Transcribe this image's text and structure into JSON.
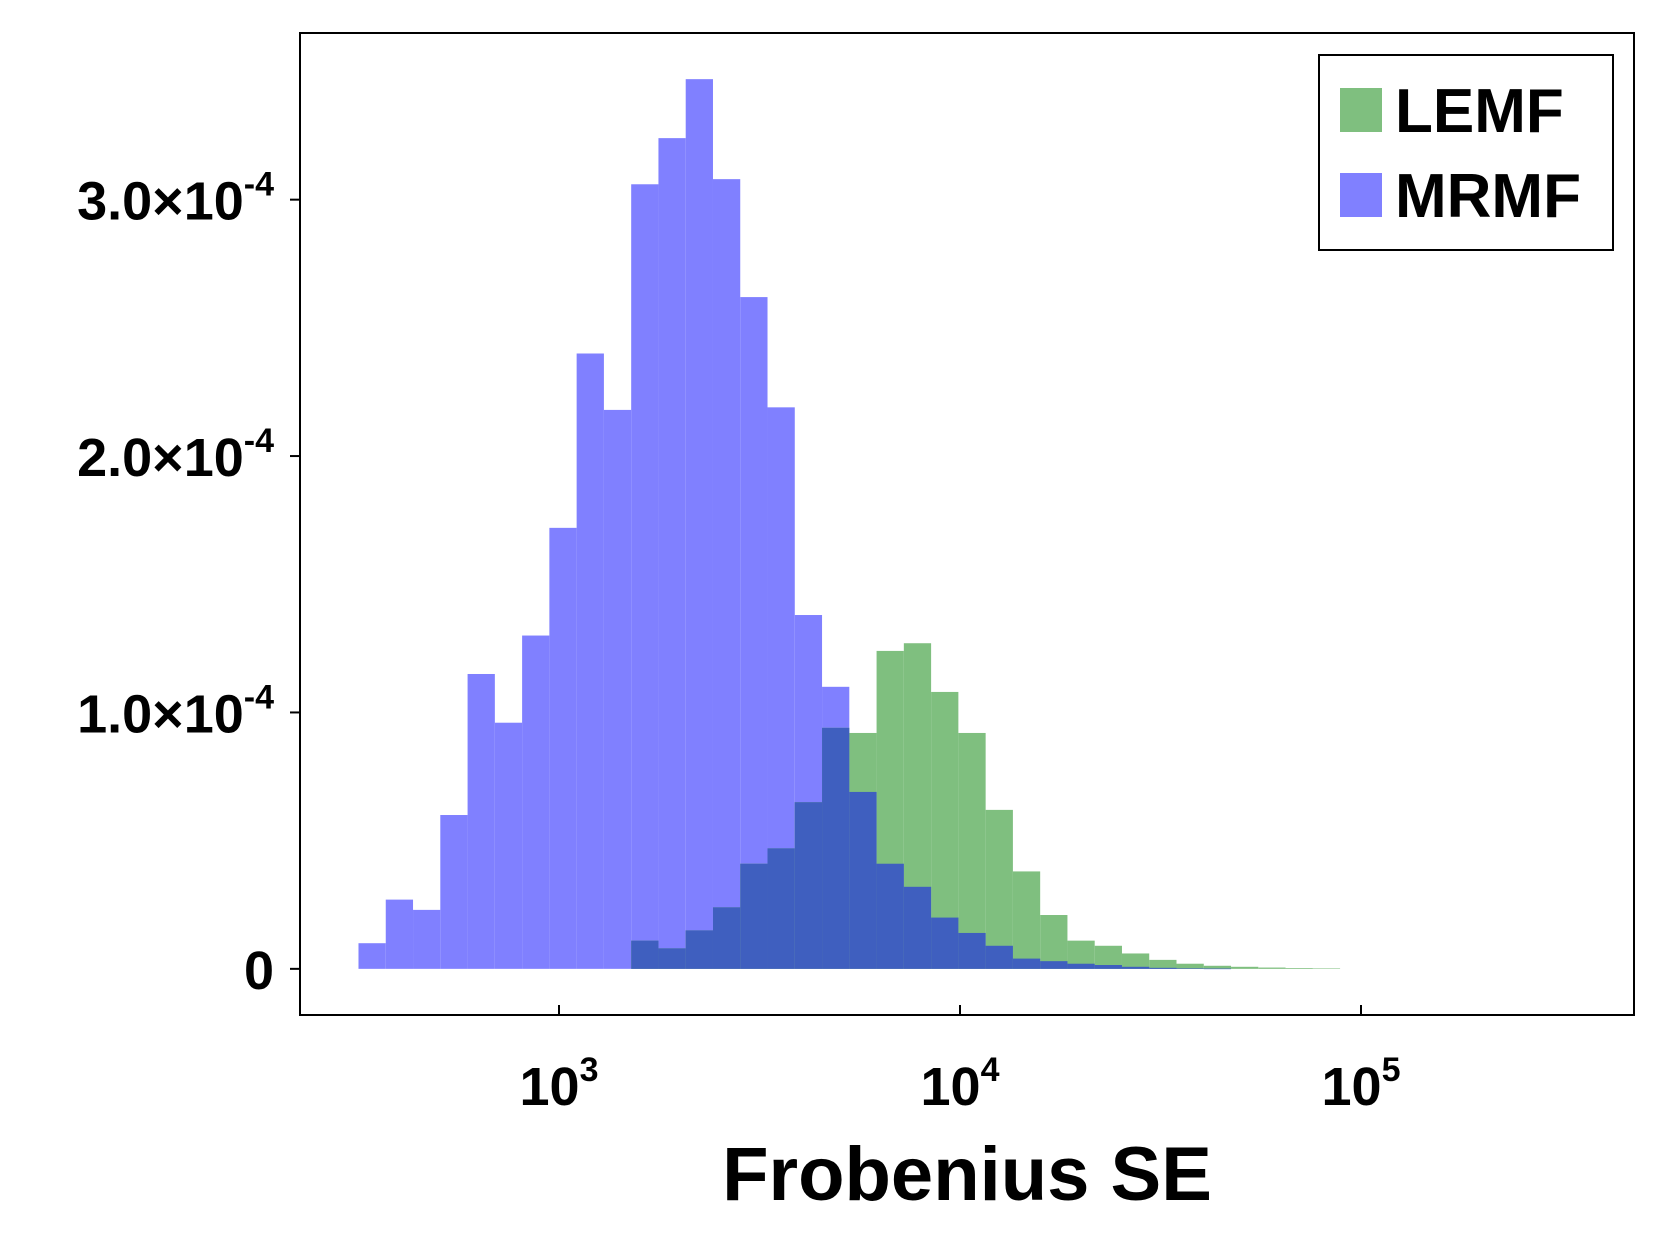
{
  "chart_data": {
    "type": "bar",
    "xlabel": "Frobenius SE",
    "ylabel": "",
    "x_scale": "log10",
    "xlim": [
      10000,
      400000
    ],
    "ylim": [
      -1.8e-05,
      0.000365
    ],
    "grid": false,
    "legend_position": "top-right",
    "x_ticks": [
      {
        "value": 1000,
        "base": "10",
        "exp": "3"
      },
      {
        "value": 10000,
        "base": "10",
        "exp": "4"
      },
      {
        "value": 100000,
        "base": "10",
        "exp": "5"
      }
    ],
    "y_ticks": [
      {
        "value": 0,
        "mantissa": "0",
        "exp": ""
      },
      {
        "value": 0.0001,
        "mantissa": "1.0×10",
        "exp": "-4"
      },
      {
        "value": 0.0002,
        "mantissa": "2.0×10",
        "exp": "-4"
      },
      {
        "value": 0.0003,
        "mantissa": "3.0×10",
        "exp": "-4"
      }
    ],
    "bin_edges": [
      316.2,
      369.8,
      432.5,
      505.8,
      591.6,
      691.9,
      809.1,
      946.2,
      1106.6,
      1294.2,
      1513.6,
      1770.1,
      2070.1,
      2421.0,
      2831.3,
      3311.3,
      3872.4,
      4528.8,
      5296.3,
      6193.9,
      7243.6,
      8471.3,
      9907.0,
      11586.2,
      13549.8,
      15846.3,
      18532.0,
      21672.9,
      25346.1,
      29641.9,
      34665.8,
      40541.2,
      47412.4,
      55448.2,
      64846.1,
      75836.9,
      88690.3
    ],
    "series": [
      {
        "name": "LEMF",
        "color": "#7fbf7f",
        "values": [
          0,
          0,
          0,
          0,
          0,
          0,
          0,
          0,
          0,
          0,
          1.1e-05,
          8e-06,
          1.5e-05,
          2.4e-05,
          4.1e-05,
          4.7e-05,
          6.5e-05,
          9.4e-05,
          9.2e-05,
          0.000124,
          0.000127,
          0.000108,
          9.2e-05,
          6.2e-05,
          3.8e-05,
          2.1e-05,
          1.1e-05,
          9e-06,
          6e-06,
          3.5e-06,
          2e-06,
          1.2e-06,
          8e-07,
          5e-07,
          3e-07,
          2e-07
        ]
      },
      {
        "name": "MRMF",
        "color": "#8080ff",
        "values": [
          1e-05,
          2.7e-05,
          2.3e-05,
          6e-05,
          0.000115,
          9.6e-05,
          0.00013,
          0.000172,
          0.00024,
          0.000218,
          0.000306,
          0.000324,
          0.000347,
          0.000308,
          0.000262,
          0.000219,
          0.000138,
          0.00011,
          6.9e-05,
          4.1e-05,
          3.2e-05,
          2e-05,
          1.4e-05,
          9e-06,
          4e-06,
          3e-06,
          2e-06,
          1.5e-06,
          8e-07,
          4e-07,
          2e-07,
          1e-07,
          0,
          0,
          0,
          0
        ]
      }
    ]
  }
}
